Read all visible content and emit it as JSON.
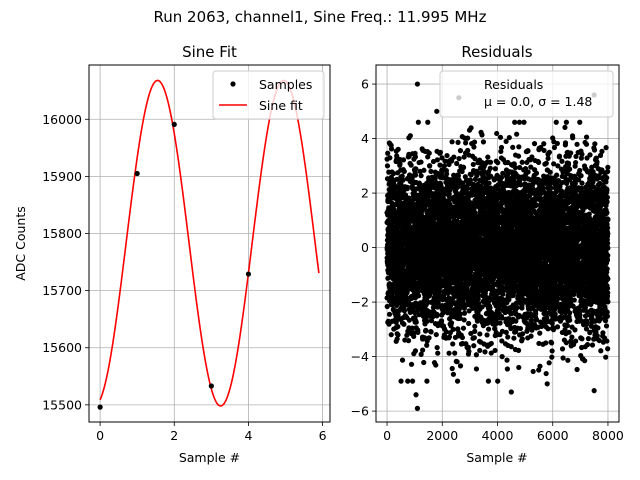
{
  "suptitle": "Run 2063, channel1, Sine Freq.: 11.995 MHz",
  "chart_data": [
    {
      "type": "scatter",
      "title": "Sine Fit",
      "xlabel": "Sample #",
      "ylabel": "ADC Counts",
      "xlim": [
        -0.3,
        6.2
      ],
      "ylim": [
        15470,
        16095
      ],
      "xticks": [
        0,
        2,
        4,
        6
      ],
      "yticks": [
        15500,
        15600,
        15700,
        15800,
        15900,
        16000
      ],
      "grid": true,
      "legend_position": "top-right",
      "series": [
        {
          "name": "Samples",
          "kind": "points",
          "color": "#000000",
          "points": [
            {
              "x": 0,
              "y": 15496
            },
            {
              "x": 1,
              "y": 15905
            },
            {
              "x": 2,
              "y": 15991
            },
            {
              "x": 3,
              "y": 15533
            },
            {
              "x": 4,
              "y": 15729
            }
          ]
        },
        {
          "name": "Sine fit",
          "kind": "line",
          "color": "#ff0000",
          "model": {
            "amplitude": 285,
            "offset": 15783,
            "period": 3.4,
            "peak_x": 1.55,
            "x_start": 0,
            "x_end": 5.9
          }
        }
      ]
    },
    {
      "type": "scatter",
      "title": "Residuals",
      "xlabel": "Sample #",
      "ylabel": "",
      "xlim": [
        -400,
        8400
      ],
      "ylim": [
        -6.4,
        6.7
      ],
      "xticks": [
        0,
        2000,
        4000,
        6000,
        8000
      ],
      "yticks": [
        -6,
        -4,
        -2,
        0,
        2,
        4,
        6
      ],
      "grid": true,
      "legend_position": "top-right",
      "legend_lines": [
        "Residuals",
        "μ = 0.0, σ = 1.48"
      ],
      "series": [
        {
          "name": "Residuals",
          "kind": "points",
          "color": "#000000",
          "count": 8000,
          "mean": 0.0,
          "std": 1.48,
          "outliers": [
            {
              "x": 1100,
              "y": 6.0
            },
            {
              "x": 2600,
              "y": 5.5
            },
            {
              "x": 7500,
              "y": 5.6
            },
            {
              "x": 1100,
              "y": -5.9
            },
            {
              "x": 1050,
              "y": -5.4
            },
            {
              "x": 4500,
              "y": -5.3
            },
            {
              "x": 7500,
              "y": -5.25
            },
            {
              "x": 5800,
              "y": -5.0
            },
            {
              "x": 1800,
              "y": 5.0
            }
          ]
        }
      ]
    }
  ]
}
